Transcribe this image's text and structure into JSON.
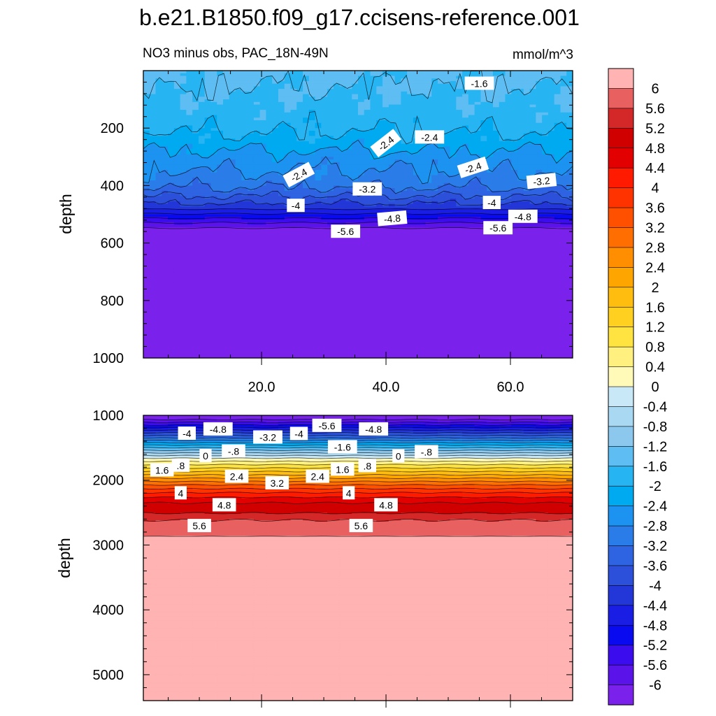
{
  "chart_data": {
    "type": "heatmap",
    "title": "b.e21.B1850.f09_g17.ccisens-reference.001",
    "subtitle": "NO3 minus obs, PAC_18N-49N",
    "units": "mmol/m^3",
    "xaxis": {
      "range": [
        1,
        70
      ],
      "ticks": [
        "20.0",
        "40.0",
        "60.0"
      ],
      "tick_values": [
        20,
        40,
        60
      ]
    },
    "panels": [
      {
        "name": "upper",
        "ylabel": "depth",
        "ylim": [
          0,
          1000
        ],
        "y_ticks": [
          "200",
          "400",
          "600",
          "800",
          "1000"
        ],
        "y_tick_values": [
          200,
          400,
          600,
          800,
          1000
        ],
        "labels": [
          {
            "t": "-1.6",
            "x": 55,
            "d": 45,
            "r": 0
          },
          {
            "t": "-2.4",
            "x": 40,
            "d": 253,
            "r": -38
          },
          {
            "t": "-2.4",
            "x": 47,
            "d": 232,
            "r": 0
          },
          {
            "t": "-2.4",
            "x": 26,
            "d": 363,
            "r": -28
          },
          {
            "t": "-2.4",
            "x": 54,
            "d": 338,
            "r": -18
          },
          {
            "t": "-3.2",
            "x": 37,
            "d": 413,
            "r": 0
          },
          {
            "t": "-3.2",
            "x": 65,
            "d": 385,
            "r": -6
          },
          {
            "t": "-4",
            "x": 25.5,
            "d": 470,
            "r": 0
          },
          {
            "t": "-4",
            "x": 57,
            "d": 460,
            "r": 0
          },
          {
            "t": "-4.8",
            "x": 41,
            "d": 515,
            "r": -5
          },
          {
            "t": "-4.8",
            "x": 62,
            "d": 508,
            "r": 0
          },
          {
            "t": "-5.6",
            "x": 33.5,
            "d": 560,
            "r": 0
          },
          {
            "t": "-5.6",
            "x": 58,
            "d": 548,
            "r": 0
          }
        ]
      },
      {
        "name": "lower",
        "ylabel": "depth",
        "ylim": [
          1000,
          5400
        ],
        "y_ticks": [
          "1000",
          "2000",
          "3000",
          "4000",
          "5000"
        ],
        "y_tick_values": [
          1000,
          2000,
          3000,
          4000,
          5000
        ],
        "labels": [
          {
            "t": "-4",
            "x": 8,
            "d": 1280,
            "r": 0
          },
          {
            "t": "-4.8",
            "x": 13,
            "d": 1215,
            "r": 0
          },
          {
            "t": "-3.2",
            "x": 21,
            "d": 1340,
            "r": 0
          },
          {
            "t": "-4",
            "x": 26,
            "d": 1285,
            "r": 0
          },
          {
            "t": "-5.6",
            "x": 30.5,
            "d": 1160,
            "r": 0
          },
          {
            "t": "-4.8",
            "x": 38,
            "d": 1215,
            "r": 0
          },
          {
            "t": "-1.6",
            "x": 33,
            "d": 1490,
            "r": 0
          },
          {
            "t": "-.8",
            "x": 15.5,
            "d": 1555,
            "r": 0
          },
          {
            "t": "0",
            "x": 11,
            "d": 1625,
            "r": 0
          },
          {
            "t": "-.8",
            "x": 46.5,
            "d": 1565,
            "r": 0
          },
          {
            "t": "0",
            "x": 42,
            "d": 1630,
            "r": 0
          },
          {
            "t": "1.6",
            "x": 4,
            "d": 1845,
            "r": 0
          },
          {
            "t": ".8",
            "x": 7,
            "d": 1775,
            "r": 0
          },
          {
            "t": ".8",
            "x": 37,
            "d": 1780,
            "r": 0
          },
          {
            "t": "1.6",
            "x": 33,
            "d": 1835,
            "r": 0
          },
          {
            "t": "2.4",
            "x": 16,
            "d": 1945,
            "r": 0
          },
          {
            "t": "3.2",
            "x": 22.5,
            "d": 2045,
            "r": 0
          },
          {
            "t": "2.4",
            "x": 29,
            "d": 1945,
            "r": 0
          },
          {
            "t": "4",
            "x": 7,
            "d": 2200,
            "r": 0
          },
          {
            "t": "4",
            "x": 34,
            "d": 2200,
            "r": 0
          },
          {
            "t": "4.8",
            "x": 14,
            "d": 2385,
            "r": 0
          },
          {
            "t": "4.8",
            "x": 40,
            "d": 2385,
            "r": 0
          },
          {
            "t": "5.6",
            "x": 10,
            "d": 2705,
            "r": 0
          },
          {
            "t": "5.6",
            "x": 36,
            "d": 2705,
            "r": 0
          }
        ]
      }
    ],
    "colorbar": {
      "levels": [
        "6",
        "5.6",
        "5.2",
        "4.8",
        "4.4",
        "4",
        "3.6",
        "3.2",
        "2.8",
        "2.4",
        "2",
        "1.6",
        "1.2",
        "0.8",
        "0.4",
        "0",
        "-0.4",
        "-0.8",
        "-1.2",
        "-1.6",
        "-2",
        "-2.4",
        "-2.8",
        "-3.2",
        "-3.6",
        "-4",
        "-4.4",
        "-4.8",
        "-5.2",
        "-5.6",
        "-6"
      ],
      "colors": [
        "#FFB3B3",
        "#E96060",
        "#D42828",
        "#D00000",
        "#E30000",
        "#FF1A00",
        "#FF3300",
        "#FF5000",
        "#FF6E00",
        "#FF8E00",
        "#FFA500",
        "#FFBD0F",
        "#FFD020",
        "#FFE340",
        "#FFF080",
        "#FFFAB8",
        "#C8E8F8",
        "#A8D8F2",
        "#8CC8EE",
        "#5EBDF2",
        "#27B4F2",
        "#00AAF0",
        "#1C93F0",
        "#2A7DE8",
        "#2E63E2",
        "#2C50DA",
        "#2336D8",
        "#1A1EE4",
        "#0A0AF0",
        "#3A0CEE",
        "#5A14EA",
        "#7A22EC"
      ]
    },
    "profile": {
      "depths": [
        0,
        100,
        200,
        250,
        300,
        350,
        400,
        430,
        470,
        490,
        510,
        525,
        540,
        560
      ],
      "values": [
        -1.5,
        -1.65,
        -1.9,
        -2.2,
        -2.55,
        -2.8,
        -3.1,
        -3.5,
        -4.1,
        -4.6,
        -5.1,
        -5.5,
        -5.8,
        -6.3
      ],
      "deep_depths": [
        1000,
        1060,
        1150,
        1250,
        1350,
        1450,
        1550,
        1650,
        1720,
        1800,
        1900,
        2000,
        2100,
        2200,
        2300,
        2400,
        2500,
        2550,
        2650,
        2860,
        2870,
        5400
      ],
      "deep_values": [
        -6.3,
        -6.05,
        -5.2,
        -4.2,
        -3.2,
        -2.1,
        -1.1,
        -0.1,
        0.5,
        1.1,
        1.85,
        2.65,
        3.4,
        4.05,
        4.6,
        5.0,
        5.15,
        5.4,
        5.7,
        5.75,
        6.3,
        6.3
      ]
    }
  }
}
